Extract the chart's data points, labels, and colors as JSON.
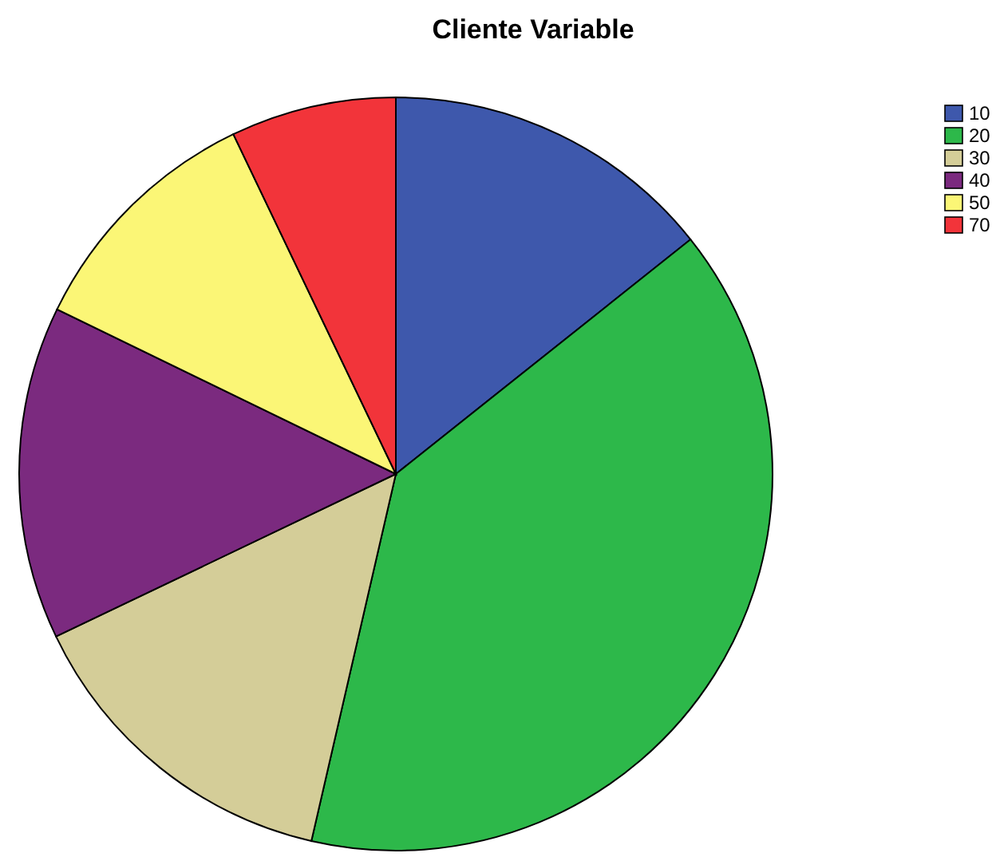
{
  "chart_data": {
    "type": "pie",
    "title": "Cliente Variable",
    "categories": [
      "10",
      "20",
      "30",
      "40",
      "50",
      "70"
    ],
    "values": [
      14.3,
      39.3,
      14.3,
      14.3,
      10.7,
      7.1
    ],
    "colors": [
      "#3e58ac",
      "#2db84a",
      "#d4cd98",
      "#7b2a7f",
      "#fbf676",
      "#f2343a"
    ],
    "legend": "top right"
  }
}
